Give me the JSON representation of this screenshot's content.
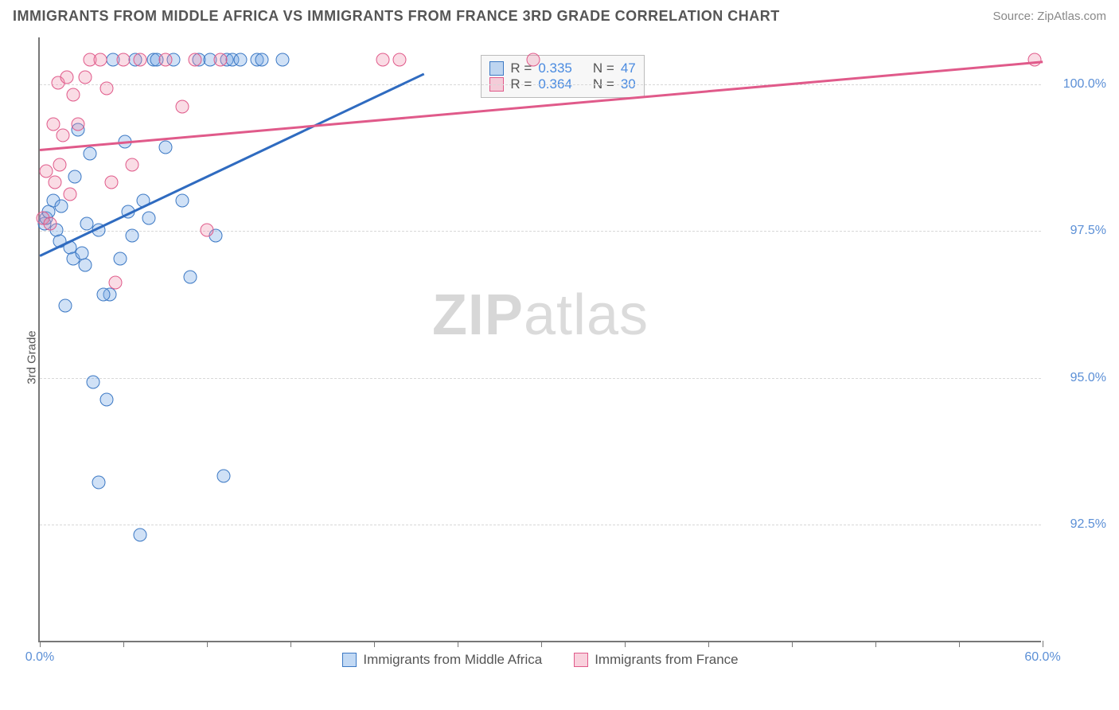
{
  "header": {
    "title": "IMMIGRANTS FROM MIDDLE AFRICA VS IMMIGRANTS FROM FRANCE 3RD GRADE CORRELATION CHART",
    "source": "Source: ZipAtlas.com"
  },
  "chart": {
    "type": "scatter",
    "ylabel": "3rd Grade",
    "watermark": {
      "bold": "ZIP",
      "light": "atlas"
    },
    "xlim": [
      0,
      60
    ],
    "ylim": [
      90.5,
      100.8
    ],
    "xticks": [
      0,
      5,
      10,
      15,
      20,
      25,
      30,
      35,
      40,
      45,
      50,
      55,
      60
    ],
    "xtick_labels": {
      "0": "0.0%",
      "60": "60.0%"
    },
    "yticks": [
      92.5,
      95.0,
      97.5,
      100.0
    ],
    "ytick_labels": [
      "92.5%",
      "95.0%",
      "97.5%",
      "100.0%"
    ],
    "grid_color": "#d8d8d8",
    "axis_color": "#777777",
    "background_color": "#ffffff",
    "series": [
      {
        "name": "Immigrants from Middle Africa",
        "color_fill": "rgba(120,170,230,0.35)",
        "color_stroke": "#3b78c4",
        "marker": "circle",
        "marker_size": 17,
        "trend": {
          "x1": 0,
          "y1": 97.1,
          "x2": 23,
          "y2": 100.2,
          "color": "#2f6bc0",
          "width": 2.5
        },
        "stats": {
          "R": "0.335",
          "N": "47"
        },
        "points": [
          [
            0.3,
            97.6
          ],
          [
            0.4,
            97.7
          ],
          [
            0.5,
            97.8
          ],
          [
            0.8,
            98.0
          ],
          [
            1.0,
            97.5
          ],
          [
            1.2,
            97.3
          ],
          [
            1.3,
            97.9
          ],
          [
            1.5,
            96.2
          ],
          [
            1.8,
            97.2
          ],
          [
            2.0,
            97.0
          ],
          [
            2.1,
            98.4
          ],
          [
            2.3,
            99.2
          ],
          [
            2.5,
            97.1
          ],
          [
            2.7,
            96.9
          ],
          [
            2.8,
            97.6
          ],
          [
            3.0,
            98.8
          ],
          [
            3.2,
            94.9
          ],
          [
            3.5,
            93.2
          ],
          [
            3.5,
            97.5
          ],
          [
            4.0,
            94.6
          ],
          [
            4.2,
            96.4
          ],
          [
            4.4,
            100.4
          ],
          [
            4.8,
            97.0
          ],
          [
            5.1,
            99.0
          ],
          [
            5.3,
            97.8
          ],
          [
            5.5,
            97.4
          ],
          [
            5.7,
            100.4
          ],
          [
            3.8,
            96.4
          ],
          [
            6.0,
            92.3
          ],
          [
            6.2,
            98.0
          ],
          [
            6.5,
            97.7
          ],
          [
            6.8,
            100.4
          ],
          [
            7.0,
            100.4
          ],
          [
            7.5,
            98.9
          ],
          [
            8.0,
            100.4
          ],
          [
            8.5,
            98.0
          ],
          [
            9.0,
            96.7
          ],
          [
            9.5,
            100.4
          ],
          [
            10.2,
            100.4
          ],
          [
            10.5,
            97.4
          ],
          [
            11.0,
            93.3
          ],
          [
            11.2,
            100.4
          ],
          [
            11.5,
            100.4
          ],
          [
            12.0,
            100.4
          ],
          [
            13.0,
            100.4
          ],
          [
            13.3,
            100.4
          ],
          [
            14.5,
            100.4
          ]
        ]
      },
      {
        "name": "Immigrants from France",
        "color_fill": "rgba(240,140,170,0.30)",
        "color_stroke": "#e05a8a",
        "marker": "circle",
        "marker_size": 17,
        "trend": {
          "x1": 0,
          "y1": 98.9,
          "x2": 60,
          "y2": 100.4,
          "color": "#e05a8a",
          "width": 2.5
        },
        "stats": {
          "R": "0.364",
          "N": "30"
        },
        "points": [
          [
            0.2,
            97.7
          ],
          [
            0.4,
            98.5
          ],
          [
            0.6,
            97.6
          ],
          [
            0.8,
            99.3
          ],
          [
            0.9,
            98.3
          ],
          [
            1.1,
            100.0
          ],
          [
            1.2,
            98.6
          ],
          [
            1.4,
            99.1
          ],
          [
            1.6,
            100.1
          ],
          [
            1.8,
            98.1
          ],
          [
            2.0,
            99.8
          ],
          [
            2.3,
            99.3
          ],
          [
            2.7,
            100.1
          ],
          [
            3.0,
            100.4
          ],
          [
            3.6,
            100.4
          ],
          [
            4.0,
            99.9
          ],
          [
            4.3,
            98.3
          ],
          [
            4.5,
            96.6
          ],
          [
            5.0,
            100.4
          ],
          [
            5.5,
            98.6
          ],
          [
            6.0,
            100.4
          ],
          [
            7.5,
            100.4
          ],
          [
            8.5,
            99.6
          ],
          [
            9.3,
            100.4
          ],
          [
            10.0,
            97.5
          ],
          [
            10.8,
            100.4
          ],
          [
            20.5,
            100.4
          ],
          [
            21.5,
            100.4
          ],
          [
            29.5,
            100.4
          ],
          [
            59.5,
            100.4
          ]
        ]
      }
    ],
    "stat_box": {
      "left_pct": 44.0,
      "top_y": 100.5
    },
    "bottom_legend": [
      {
        "swatch": "b",
        "label": "Immigrants from Middle Africa"
      },
      {
        "swatch": "p",
        "label": "Immigrants from France"
      }
    ]
  }
}
